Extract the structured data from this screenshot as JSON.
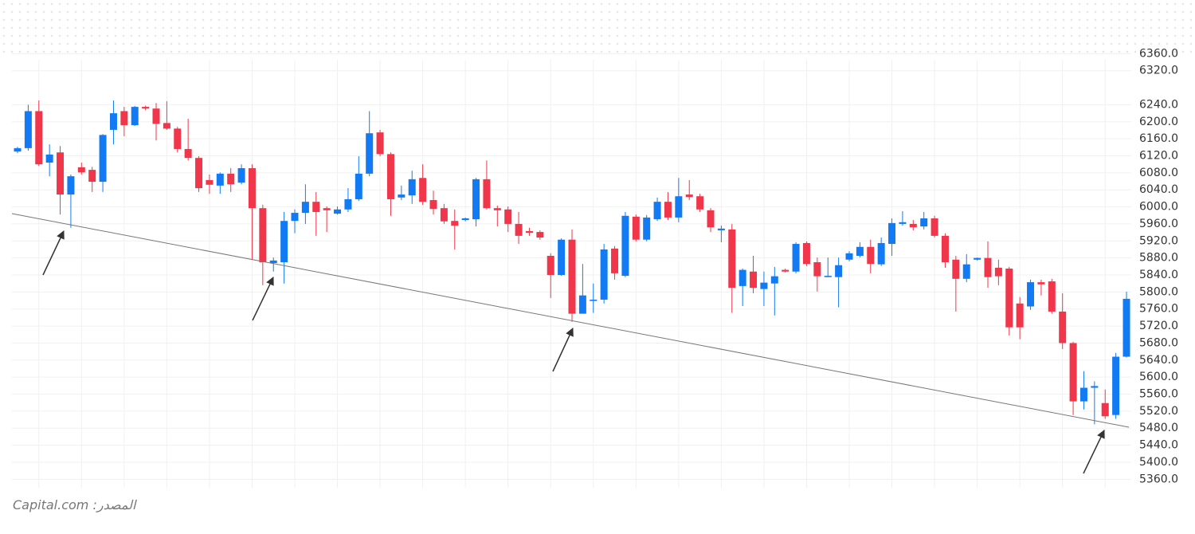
{
  "chart_data": {
    "type": "candlestick",
    "source": "المصدر: Capital.com",
    "up_color": "#127bf4",
    "down_color": "#f0364a",
    "open": [
      6130,
      6138,
      6225,
      6104,
      6128,
      6029,
      6093,
      6087,
      6059,
      6181,
      6225,
      6192,
      6235,
      6231,
      6197,
      6184,
      6136,
      6115,
      6063,
      6050,
      6078,
      6057,
      6091,
      5997,
      5868,
      5870,
      5967,
      5986,
      6012,
      5997,
      5984,
      5994,
      6018,
      6078,
      6175,
      6124,
      6022,
      6027,
      6068,
      6016,
      5997,
      5967,
      5969,
      5971,
      6065,
      5997,
      5994,
      5960,
      5943,
      5941,
      5885,
      5840,
      5923,
      5749,
      5779,
      5782,
      5902,
      5838,
      5977,
      5923,
      5971,
      6012,
      5975,
      6029,
      6025,
      5992,
      5945,
      5947,
      5814,
      5848,
      5807,
      5820,
      5852,
      5848,
      5915,
      5870,
      5835,
      5835,
      5876,
      5885,
      5906,
      5865,
      5913,
      5960,
      5960,
      5954,
      5973,
      5932,
      5876,
      5831,
      5876,
      5880,
      5857,
      5855,
      5773,
      5766,
      5823,
      5825,
      5754,
      5680,
      5543,
      5575,
      5539,
      5511,
      5648
    ],
    "high": [
      6141,
      6240,
      6250,
      6147,
      6143,
      6076,
      6104,
      6094,
      6171,
      6250,
      6235,
      6237,
      6238,
      6244,
      6248,
      6188,
      6207,
      6119,
      6076,
      6081,
      6091,
      6100,
      6100,
      6005,
      5881,
      5988,
      5994,
      6053,
      6035,
      6001,
      6001,
      6044,
      6119,
      6225,
      6181,
      6128,
      6050,
      6085,
      6100,
      6038,
      6007,
      5994,
      5975,
      6068,
      6109,
      6003,
      6001,
      5988,
      5951,
      5945,
      5891,
      5926,
      5947,
      5866,
      5820,
      5913,
      5908,
      5988,
      5982,
      5981,
      6022,
      6035,
      6068,
      6063,
      6031,
      5997,
      5956,
      5960,
      5855,
      5885,
      5848,
      5859,
      5855,
      5917,
      5919,
      5881,
      5881,
      5881,
      5896,
      5917,
      5923,
      5928,
      5973,
      5990,
      5969,
      5988,
      5979,
      5938,
      5885,
      5889,
      5881,
      5919,
      5876,
      5859,
      5788,
      5829,
      5829,
      5831,
      5797,
      5683,
      5614,
      5590,
      5571,
      5657,
      5801
    ],
    "low": [
      6126,
      6132,
      6096,
      6072,
      5982,
      5951,
      6076,
      6035,
      6035,
      6147,
      6166,
      6190,
      6227,
      6156,
      6181,
      6128,
      6109,
      6035,
      6031,
      6031,
      6035,
      6053,
      5876,
      5816,
      5848,
      5820,
      5938,
      5960,
      5932,
      5941,
      5982,
      5988,
      6014,
      6072,
      6119,
      5979,
      6016,
      6007,
      6005,
      5982,
      5960,
      5900,
      5966,
      5954,
      5994,
      5954,
      5941,
      5913,
      5932,
      5923,
      5786,
      5838,
      5730,
      5749,
      5751,
      5773,
      5829,
      5835,
      5919,
      5919,
      5967,
      5969,
      5964,
      6016,
      5988,
      5941,
      5917,
      5751,
      5767,
      5797,
      5767,
      5745,
      5846,
      5844,
      5861,
      5801,
      5835,
      5764,
      5872,
      5881,
      5844,
      5861,
      5885,
      5956,
      5945,
      5947,
      5928,
      5857,
      5754,
      5823,
      5874,
      5810,
      5816,
      5698,
      5689,
      5758,
      5792,
      5749,
      5666,
      5511,
      5524,
      5489,
      5502,
      5502,
      5646
    ],
    "close": [
      6138,
      6225,
      6100,
      6123,
      6029,
      6072,
      6081,
      6059,
      6169,
      6220,
      6192,
      6235,
      6231,
      6195,
      6184,
      6136,
      6115,
      6044,
      6052,
      6078,
      6053,
      6091,
      5997,
      5870,
      5874,
      5967,
      5986,
      6012,
      5988,
      5992,
      5994,
      6018,
      6078,
      6173,
      6124,
      6018,
      6029,
      6065,
      6012,
      5995,
      5966,
      5956,
      5973,
      6065,
      5997,
      5992,
      5960,
      5932,
      5939,
      5928,
      5840,
      5923,
      5749,
      5792,
      5782,
      5900,
      5844,
      5979,
      5923,
      5975,
      6012,
      5975,
      6025,
      6023,
      5994,
      5952,
      5949,
      5810,
      5852,
      5810,
      5822,
      5837,
      5848,
      5913,
      5866,
      5837,
      5838,
      5863,
      5891,
      5906,
      5866,
      5915,
      5962,
      5964,
      5952,
      5973,
      5932,
      5870,
      5831,
      5865,
      5880,
      5835,
      5837,
      5717,
      5717,
      5823,
      5818,
      5754,
      5680,
      5543,
      5575,
      5579,
      5508,
      5648,
      5784
    ],
    "ylim": [
      5340,
      6370
    ],
    "yticks": [
      {
        "value": 6360,
        "label": "6360.0"
      },
      {
        "value": 6320,
        "label": "6320.0"
      },
      {
        "value": 6240,
        "label": "6240.0"
      },
      {
        "value": 6200,
        "label": "6200.0"
      },
      {
        "value": 6160,
        "label": "6160.0"
      },
      {
        "value": 6120,
        "label": "6120.0"
      },
      {
        "value": 6080,
        "label": "6080.0"
      },
      {
        "value": 6040,
        "label": "6040.0"
      },
      {
        "value": 6000,
        "label": "6000.0"
      },
      {
        "value": 5960,
        "label": "5960.0"
      },
      {
        "value": 5920,
        "label": "5920.0"
      },
      {
        "value": 5880,
        "label": "5880.0"
      },
      {
        "value": 5840,
        "label": "5840.0"
      },
      {
        "value": 5800,
        "label": "5800.0"
      },
      {
        "value": 5760,
        "label": "5760.0"
      },
      {
        "value": 5720,
        "label": "5720.0"
      },
      {
        "value": 5680,
        "label": "5680.0"
      },
      {
        "value": 5640,
        "label": "5640.0"
      },
      {
        "value": 5600,
        "label": "5600.0"
      },
      {
        "value": 5560,
        "label": "5560.0"
      },
      {
        "value": 5520,
        "label": "5520.0"
      },
      {
        "value": 5480,
        "label": "5480.0"
      },
      {
        "value": 5440,
        "label": "5440.0"
      },
      {
        "value": 5400,
        "label": "5400.0"
      },
      {
        "value": 5360,
        "label": "5360.0"
      }
    ],
    "grid": true
  }
}
